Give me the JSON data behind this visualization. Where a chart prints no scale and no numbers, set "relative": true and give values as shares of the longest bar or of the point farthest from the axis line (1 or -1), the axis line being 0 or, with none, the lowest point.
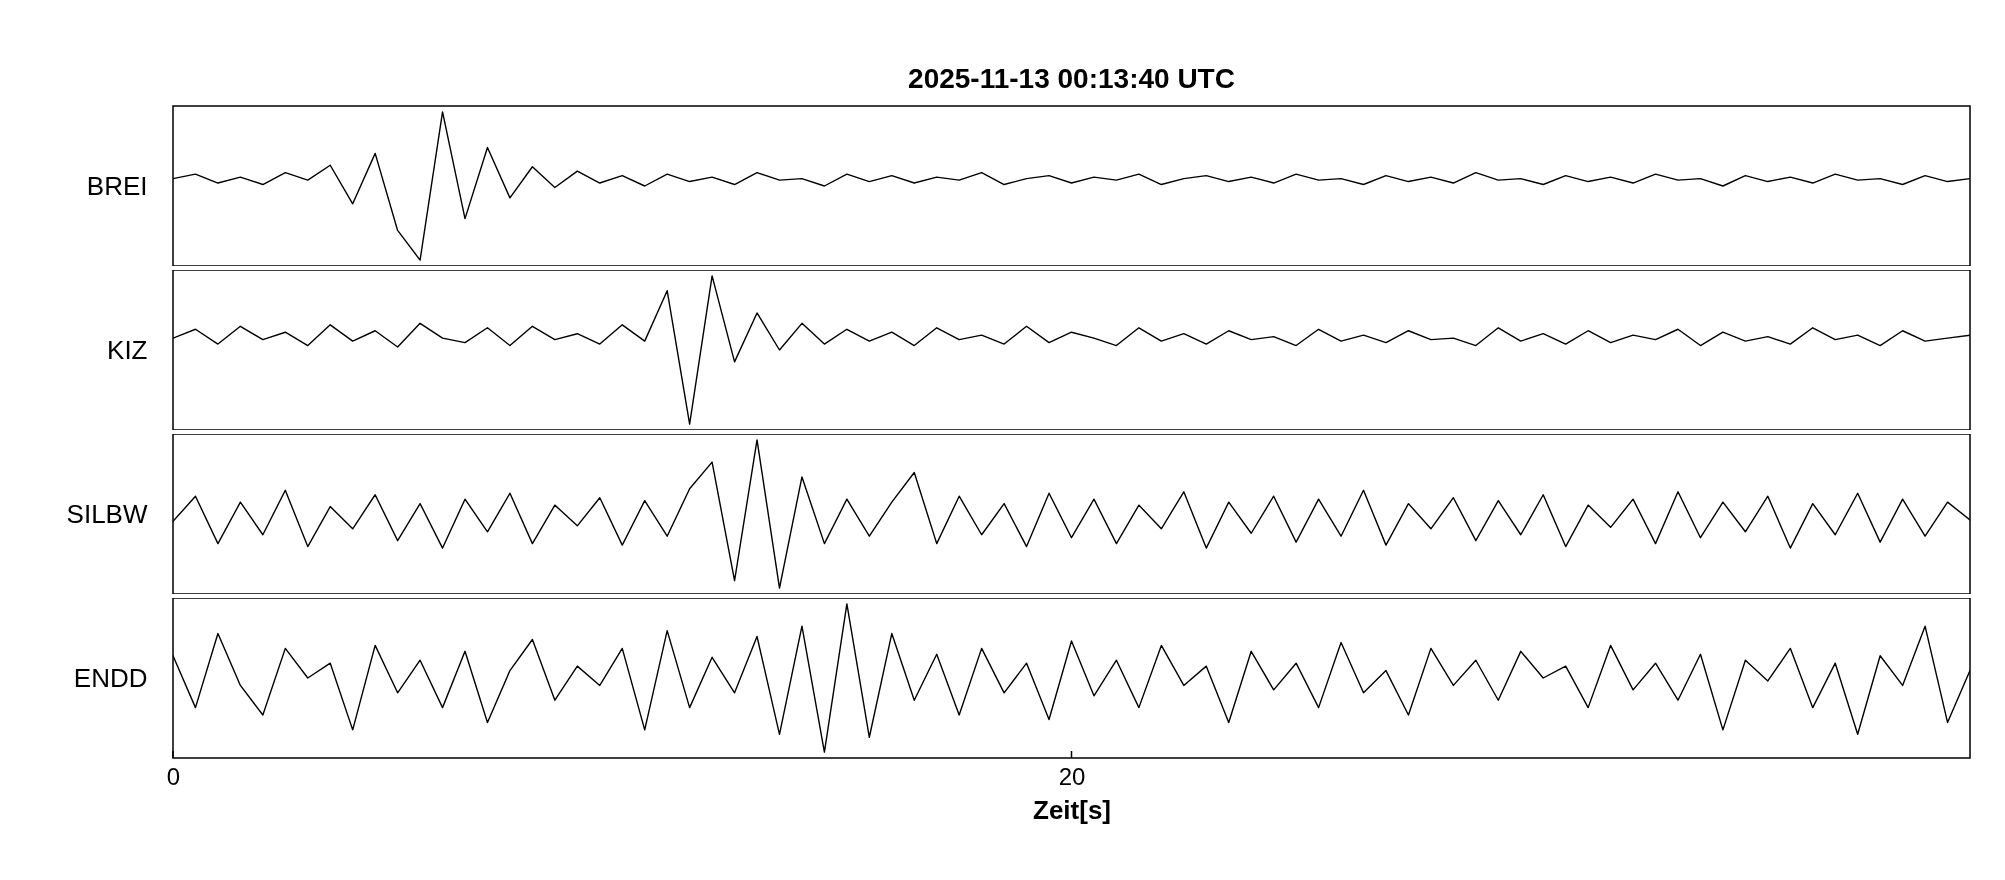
{
  "chart_data": [
    {
      "type": "line",
      "title": "2025-11-13  00:13:40 UTC",
      "ylabel": "BREI",
      "relative": true,
      "tick_labels": false,
      "grid": false,
      "xlim": [
        0,
        40
      ],
      "x": [
        0,
        0.5,
        1,
        1.5,
        2,
        2.5,
        3,
        3.5,
        4,
        4.5,
        5,
        5.5,
        6,
        6.5,
        7,
        7.5,
        8,
        8.5,
        9,
        9.5,
        10,
        10.5,
        11,
        11.5,
        12,
        12.5,
        13,
        13.5,
        14,
        14.5,
        15,
        15.5,
        16,
        16.5,
        17,
        17.5,
        18,
        18.5,
        19,
        19.5,
        20,
        20.5,
        21,
        21.5,
        22,
        22.5,
        23,
        23.5,
        24,
        24.5,
        25,
        25.5,
        26,
        26.5,
        27,
        27.5,
        28,
        28.5,
        29,
        29.5,
        30,
        30.5,
        31,
        31.5,
        32,
        32.5,
        33,
        33.5,
        34,
        34.5,
        35,
        35.5,
        36,
        36.5,
        37,
        37.5,
        38,
        38.5,
        39,
        39.5,
        40
      ],
      "series": [
        {
          "color": "#000000",
          "values": [
            0.55,
            0.58,
            0.52,
            0.56,
            0.51,
            0.59,
            0.54,
            0.64,
            0.38,
            0.72,
            0.2,
            0,
            1,
            0.28,
            0.76,
            0.42,
            0.63,
            0.49,
            0.6,
            0.52,
            0.57,
            0.5,
            0.58,
            0.53,
            0.56,
            0.51,
            0.59,
            0.54,
            0.55,
            0.5,
            0.58,
            0.53,
            0.57,
            0.52,
            0.56,
            0.54,
            0.59,
            0.51,
            0.55,
            0.57,
            0.52,
            0.56,
            0.54,
            0.58,
            0.51,
            0.55,
            0.57,
            0.53,
            0.56,
            0.52,
            0.58,
            0.54,
            0.55,
            0.51,
            0.57,
            0.53,
            0.56,
            0.52,
            0.59,
            0.54,
            0.55,
            0.51,
            0.57,
            0.53,
            0.56,
            0.52,
            0.58,
            0.54,
            0.55,
            0.5,
            0.57,
            0.53,
            0.56,
            0.52,
            0.58,
            0.54,
            0.55,
            0.51,
            0.57,
            0.53,
            0.55
          ]
        }
      ]
    },
    {
      "type": "line",
      "ylabel": "KIZ",
      "relative": true,
      "tick_labels": false,
      "grid": false,
      "xlim": [
        0,
        40
      ],
      "x": [
        0,
        0.5,
        1,
        1.5,
        2,
        2.5,
        3,
        3.5,
        4,
        4.5,
        5,
        5.5,
        6,
        6.5,
        7,
        7.5,
        8,
        8.5,
        9,
        9.5,
        10,
        10.5,
        11,
        11.5,
        12,
        12.5,
        13,
        13.5,
        14,
        14.5,
        15,
        15.5,
        16,
        16.5,
        17,
        17.5,
        18,
        18.5,
        19,
        19.5,
        20,
        20.5,
        21,
        21.5,
        22,
        22.5,
        23,
        23.5,
        24,
        24.5,
        25,
        25.5,
        26,
        26.5,
        27,
        27.5,
        28,
        28.5,
        29,
        29.5,
        30,
        30.5,
        31,
        31.5,
        32,
        32.5,
        33,
        33.5,
        34,
        34.5,
        35,
        35.5,
        36,
        36.5,
        37,
        37.5,
        38,
        38.5,
        39,
        39.5,
        40
      ],
      "series": [
        {
          "color": "#000000",
          "values": [
            0.58,
            0.64,
            0.54,
            0.66,
            0.57,
            0.62,
            0.53,
            0.67,
            0.56,
            0.63,
            0.52,
            0.68,
            0.58,
            0.55,
            0.65,
            0.53,
            0.66,
            0.57,
            0.61,
            0.54,
            0.67,
            0.56,
            0.9,
            0,
            1,
            0.42,
            0.75,
            0.5,
            0.68,
            0.54,
            0.64,
            0.56,
            0.62,
            0.53,
            0.65,
            0.57,
            0.6,
            0.54,
            0.66,
            0.55,
            0.62,
            0.58,
            0.53,
            0.65,
            0.56,
            0.61,
            0.54,
            0.63,
            0.57,
            0.59,
            0.53,
            0.64,
            0.56,
            0.6,
            0.55,
            0.63,
            0.57,
            0.58,
            0.53,
            0.65,
            0.56,
            0.61,
            0.54,
            0.63,
            0.55,
            0.6,
            0.57,
            0.64,
            0.53,
            0.62,
            0.56,
            0.59,
            0.54,
            0.65,
            0.57,
            0.6,
            0.53,
            0.63,
            0.56,
            0.58,
            0.6
          ]
        }
      ]
    },
    {
      "type": "line",
      "ylabel": "SILBW",
      "relative": true,
      "tick_labels": false,
      "grid": false,
      "xlim": [
        0,
        40
      ],
      "x": [
        0,
        0.5,
        1,
        1.5,
        2,
        2.5,
        3,
        3.5,
        4,
        4.5,
        5,
        5.5,
        6,
        6.5,
        7,
        7.5,
        8,
        8.5,
        9,
        9.5,
        10,
        10.5,
        11,
        11.5,
        12,
        12.5,
        13,
        13.5,
        14,
        14.5,
        15,
        15.5,
        16,
        16.5,
        17,
        17.5,
        18,
        18.5,
        19,
        19.5,
        20,
        20.5,
        21,
        21.5,
        22,
        22.5,
        23,
        23.5,
        24,
        24.5,
        25,
        25.5,
        26,
        26.5,
        27,
        27.5,
        28,
        28.5,
        29,
        29.5,
        30,
        30.5,
        31,
        31.5,
        32,
        32.5,
        33,
        33.5,
        34,
        34.5,
        35,
        35.5,
        36,
        36.5,
        37,
        37.5,
        38,
        38.5,
        39,
        39.5,
        40
      ],
      "series": [
        {
          "color": "#000000",
          "values": [
            0.45,
            0.62,
            0.3,
            0.58,
            0.36,
            0.66,
            0.28,
            0.55,
            0.4,
            0.63,
            0.32,
            0.57,
            0.27,
            0.6,
            0.38,
            0.64,
            0.3,
            0.56,
            0.42,
            0.61,
            0.29,
            0.59,
            0.35,
            0.67,
            0.85,
            0.05,
            1,
            0,
            0.75,
            0.3,
            0.6,
            0.35,
            0.58,
            0.78,
            0.3,
            0.62,
            0.36,
            0.57,
            0.28,
            0.64,
            0.34,
            0.6,
            0.3,
            0.56,
            0.4,
            0.65,
            0.27,
            0.58,
            0.37,
            0.62,
            0.31,
            0.6,
            0.35,
            0.66,
            0.29,
            0.57,
            0.4,
            0.61,
            0.32,
            0.59,
            0.36,
            0.63,
            0.28,
            0.56,
            0.41,
            0.6,
            0.3,
            0.65,
            0.34,
            0.58,
            0.38,
            0.62,
            0.27,
            0.57,
            0.36,
            0.64,
            0.31,
            0.6,
            0.35,
            0.58,
            0.46
          ]
        }
      ]
    },
    {
      "type": "line",
      "ylabel": "ENDD",
      "xlabel": "Zeit[s]",
      "relative": true,
      "tick_labels": "x",
      "grid": false,
      "xlim": [
        0,
        40
      ],
      "xticks": [
        0,
        20
      ],
      "x": [
        0,
        0.5,
        1,
        1.5,
        2,
        2.5,
        3,
        3.5,
        4,
        4.5,
        5,
        5.5,
        6,
        6.5,
        7,
        7.5,
        8,
        8.5,
        9,
        9.5,
        10,
        10.5,
        11,
        11.5,
        12,
        12.5,
        13,
        13.5,
        14,
        14.5,
        15,
        15.5,
        16,
        16.5,
        17,
        17.5,
        18,
        18.5,
        19,
        19.5,
        20,
        20.5,
        21,
        21.5,
        22,
        22.5,
        23,
        23.5,
        24,
        24.5,
        25,
        25.5,
        26,
        26.5,
        27,
        27.5,
        28,
        28.5,
        29,
        29.5,
        30,
        30.5,
        31,
        31.5,
        32,
        32.5,
        33,
        33.5,
        34,
        34.5,
        35,
        35.5,
        36,
        36.5,
        37,
        37.5,
        38,
        38.5,
        39,
        39.5,
        40
      ],
      "series": [
        {
          "color": "#000000",
          "values": [
            0.65,
            0.3,
            0.8,
            0.45,
            0.25,
            0.7,
            0.5,
            0.6,
            0.15,
            0.72,
            0.4,
            0.62,
            0.3,
            0.68,
            0.2,
            0.55,
            0.76,
            0.35,
            0.58,
            0.45,
            0.7,
            0.15,
            0.82,
            0.3,
            0.64,
            0.4,
            0.78,
            0.12,
            0.85,
            0,
            1,
            0.1,
            0.8,
            0.35,
            0.66,
            0.25,
            0.7,
            0.4,
            0.6,
            0.22,
            0.75,
            0.38,
            0.62,
            0.3,
            0.72,
            0.45,
            0.58,
            0.2,
            0.68,
            0.42,
            0.6,
            0.3,
            0.74,
            0.4,
            0.55,
            0.25,
            0.7,
            0.45,
            0.62,
            0.35,
            0.68,
            0.5,
            0.58,
            0.3,
            0.72,
            0.42,
            0.6,
            0.35,
            0.66,
            0.15,
            0.62,
            0.48,
            0.7,
            0.3,
            0.6,
            0.12,
            0.65,
            0.45,
            0.85,
            0.2,
            0.55
          ]
        }
      ]
    }
  ]
}
